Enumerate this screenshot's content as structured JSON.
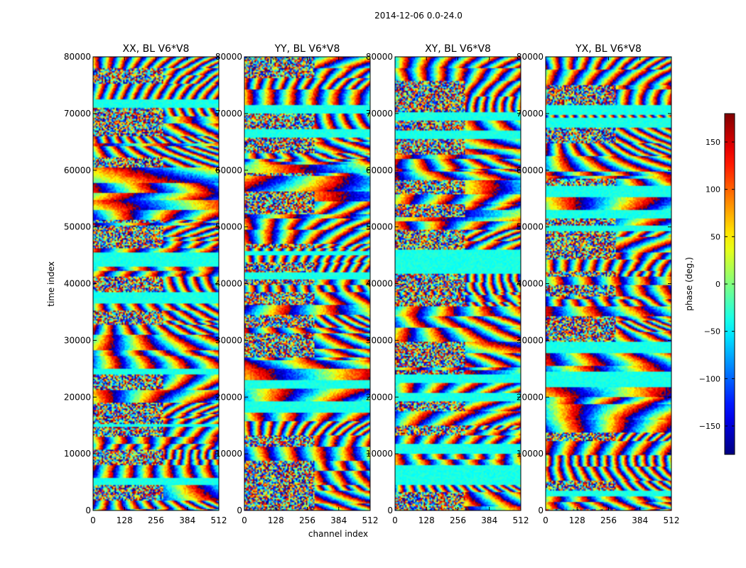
{
  "figure": {
    "suptitle": "2014-12-06 0.0-24.0",
    "xlabel": "channel index",
    "ylabel": "time index"
  },
  "colorbar": {
    "label": "phase (deg.)",
    "range": [
      -180,
      180
    ],
    "ticks": [
      -150,
      -100,
      -50,
      0,
      50,
      100,
      150
    ],
    "tick_labels": [
      "−150",
      "−100",
      "−50",
      "0",
      "50",
      "100",
      "150"
    ],
    "colormap": "jet"
  },
  "chart_data": [
    {
      "type": "heatmap",
      "title": "XX, BL V6*V8",
      "xlim": [
        0,
        512
      ],
      "ylim": [
        0,
        80000
      ],
      "xticks": [
        "0",
        "128",
        "256",
        "384",
        "512"
      ],
      "yticks": [
        "0",
        "10000",
        "20000",
        "30000",
        "40000",
        "50000",
        "60000",
        "70000",
        "80000"
      ],
      "value": "phase (deg.)"
    },
    {
      "type": "heatmap",
      "title": "YY, BL V6*V8",
      "xlim": [
        0,
        512
      ],
      "ylim": [
        0,
        80000
      ],
      "xticks": [
        "0",
        "128",
        "256",
        "384",
        "512"
      ],
      "yticks": [
        "0",
        "10000",
        "20000",
        "30000",
        "40000",
        "50000",
        "60000",
        "70000",
        "80000"
      ],
      "value": "phase (deg.)"
    },
    {
      "type": "heatmap",
      "title": "XY, BL V6*V8",
      "xlim": [
        0,
        512
      ],
      "ylim": [
        0,
        80000
      ],
      "xticks": [
        "0",
        "128",
        "256",
        "384",
        "512"
      ],
      "yticks": [
        "0",
        "10000",
        "20000",
        "30000",
        "40000",
        "50000",
        "60000",
        "70000",
        "80000"
      ],
      "value": "phase (deg.)"
    },
    {
      "type": "heatmap",
      "title": "YX, BL V6*V8",
      "xlim": [
        0,
        512
      ],
      "ylim": [
        0,
        80000
      ],
      "xticks": [
        "0",
        "128",
        "256",
        "384",
        "512"
      ],
      "yticks": [
        "0",
        "10000",
        "20000",
        "30000",
        "40000",
        "50000",
        "60000",
        "70000",
        "80000"
      ],
      "value": "phase (deg.)"
    }
  ]
}
